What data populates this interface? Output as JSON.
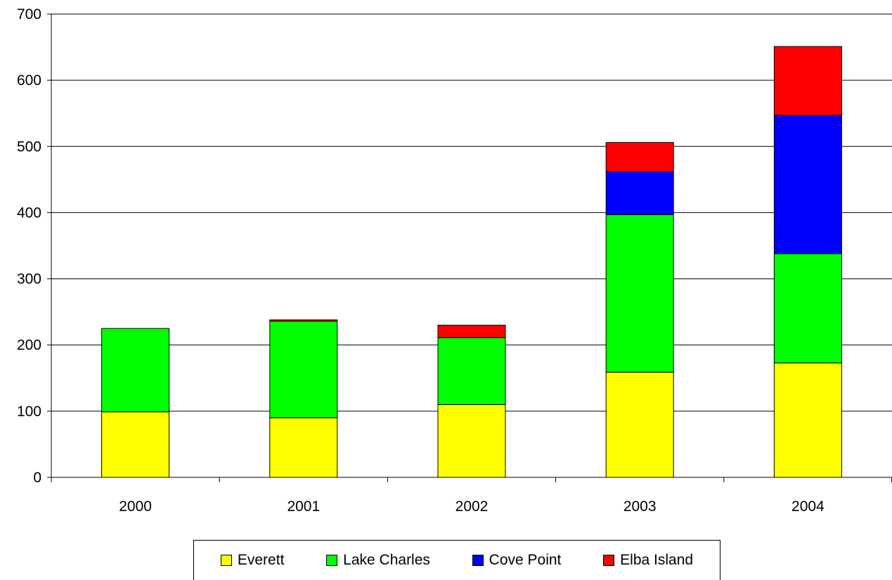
{
  "chart_data": {
    "type": "bar",
    "stacked": true,
    "title": "",
    "xlabel": "",
    "ylabel": "",
    "categories": [
      "2000",
      "2001",
      "2002",
      "2003",
      "2004"
    ],
    "ylim": [
      0,
      700
    ],
    "yticks": [
      "0",
      "100",
      "200",
      "300",
      "400",
      "500",
      "600",
      "700"
    ],
    "grid": "horizontal",
    "legend_position": "bottom",
    "series": [
      {
        "name": "Everett",
        "color": "#ffff00",
        "values": [
          99,
          90,
          110,
          159,
          173
        ]
      },
      {
        "name": "Lake Charles",
        "color": "#00ff00",
        "values": [
          126,
          146,
          101,
          238,
          165
        ]
      },
      {
        "name": "Cove Point",
        "color": "#0000ff",
        "values": [
          0,
          0,
          0,
          65,
          209
        ]
      },
      {
        "name": "Elba Island",
        "color": "#ff0000",
        "values": [
          0,
          2,
          19,
          44,
          104
        ]
      }
    ]
  }
}
